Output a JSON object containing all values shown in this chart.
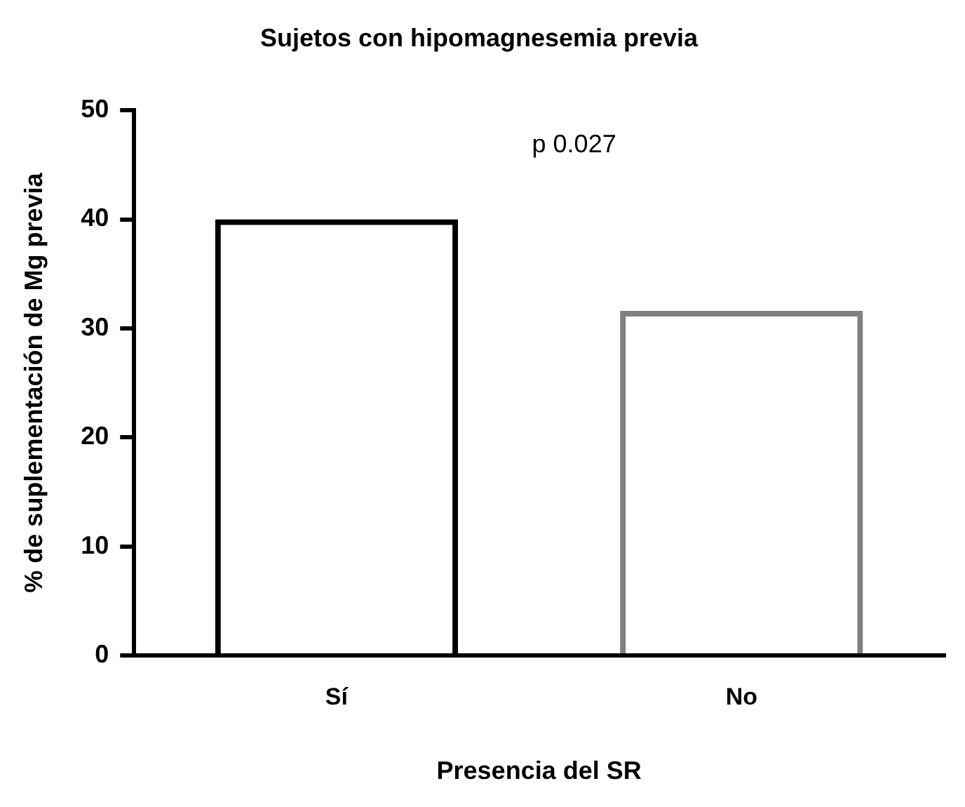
{
  "chart_data": {
    "type": "bar",
    "title": "Sujetos con hipomagnesemia previa",
    "xlabel": "Presencia del SR",
    "ylabel": "% de suplementación de Mg previa",
    "categories": [
      "Sí",
      "No"
    ],
    "values": [
      40,
      31.6
    ],
    "colors": [
      "#000000",
      "#808080"
    ],
    "ylim": [
      0,
      50
    ],
    "yticks": [
      0,
      10,
      20,
      30,
      40,
      50
    ],
    "grid": false,
    "legend": false,
    "annotations": [
      "p 0.027"
    ]
  }
}
